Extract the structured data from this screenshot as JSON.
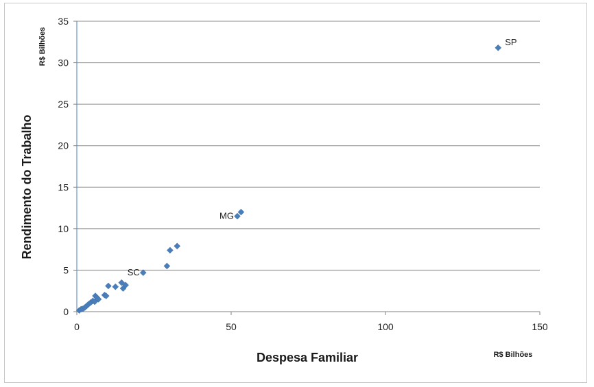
{
  "chart_data": {
    "type": "scatter",
    "xlabel": "Despesa Familiar",
    "ylabel": "Rendimento do Trabalho",
    "x_unit": "R$ Bilhões",
    "y_unit": "R$ Bilhões",
    "xlim": [
      0,
      150
    ],
    "ylim": [
      0,
      35
    ],
    "x_ticks": [
      0,
      50,
      100,
      150
    ],
    "y_ticks": [
      0,
      5,
      10,
      15,
      20,
      25,
      30,
      35
    ],
    "grid": "horizontal",
    "legend": "none",
    "marker": "diamond",
    "color": "#4a7ebb",
    "points": [
      {
        "x": 0.8,
        "y": 0.15
      },
      {
        "x": 1.4,
        "y": 0.3
      },
      {
        "x": 2.0,
        "y": 0.35
      },
      {
        "x": 2.6,
        "y": 0.5
      },
      {
        "x": 3.2,
        "y": 0.7
      },
      {
        "x": 3.8,
        "y": 0.9
      },
      {
        "x": 4.5,
        "y": 1.1
      },
      {
        "x": 5.2,
        "y": 1.3
      },
      {
        "x": 5.8,
        "y": 1.2
      },
      {
        "x": 6.0,
        "y": 1.9
      },
      {
        "x": 6.5,
        "y": 1.7
      },
      {
        "x": 7.0,
        "y": 1.5
      },
      {
        "x": 9.0,
        "y": 2.0
      },
      {
        "x": 9.5,
        "y": 1.9
      },
      {
        "x": 10.2,
        "y": 3.1
      },
      {
        "x": 12.5,
        "y": 3.0
      },
      {
        "x": 14.5,
        "y": 3.5
      },
      {
        "x": 15.0,
        "y": 2.8
      },
      {
        "x": 15.8,
        "y": 3.2
      },
      {
        "x": 21.5,
        "y": 4.7,
        "label": "SC"
      },
      {
        "x": 29.2,
        "y": 5.5
      },
      {
        "x": 30.2,
        "y": 7.4
      },
      {
        "x": 32.5,
        "y": 7.9
      },
      {
        "x": 52.0,
        "y": 11.5,
        "label": "MG"
      },
      {
        "x": 53.2,
        "y": 12.0
      },
      {
        "x": 136.5,
        "y": 31.8,
        "label": "SP"
      }
    ]
  }
}
